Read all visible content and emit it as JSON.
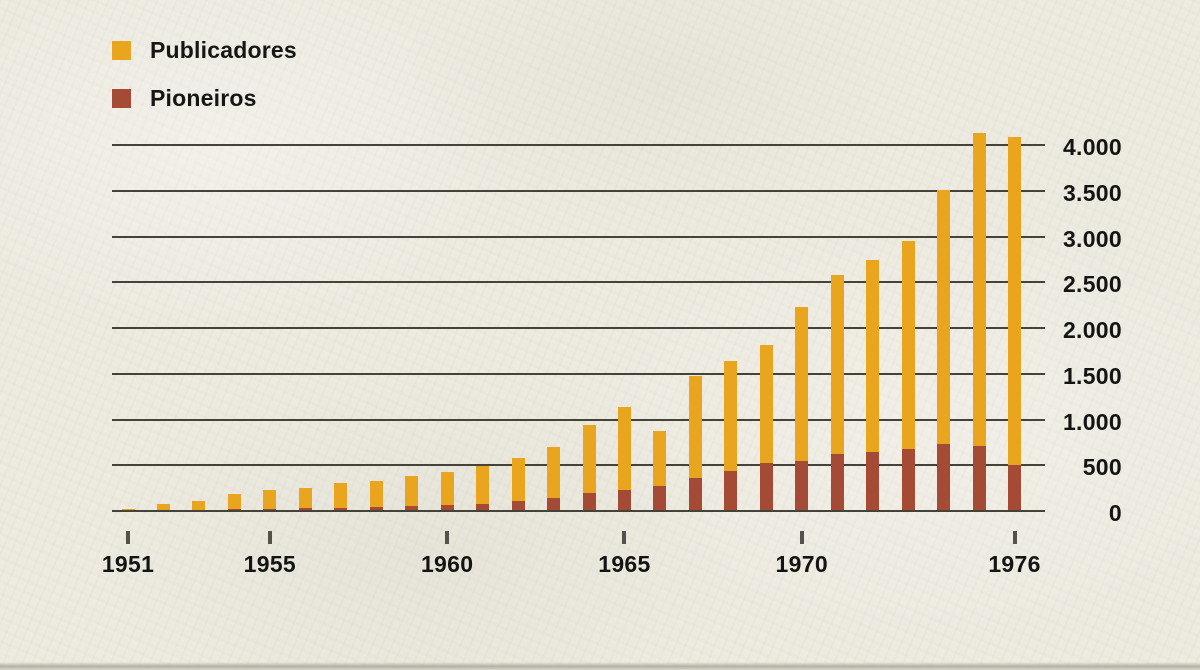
{
  "page": {
    "background_color": "#edeae0",
    "text_color": "#141412",
    "gridline_color": "#45423a"
  },
  "legend": {
    "position": "top-left",
    "items": [
      {
        "label": "Publicadores",
        "color": "#e8a51d"
      },
      {
        "label": "Pioneiros",
        "color": "#a54b35"
      }
    ]
  },
  "chart_data": {
    "type": "bar",
    "bar_mode": "overlay-stacked",
    "note": "Pioneiros segment is drawn at the base of each bar; the yellow Publicadores bar reaches the total value shown.",
    "title": "",
    "xlabel": "",
    "ylabel": "",
    "categories": [
      1951,
      1952,
      1953,
      1954,
      1955,
      1956,
      1957,
      1958,
      1959,
      1960,
      1961,
      1962,
      1963,
      1964,
      1965,
      1966,
      1967,
      1968,
      1969,
      1970,
      1971,
      1972,
      1973,
      1974,
      1975,
      1976
    ],
    "series": [
      {
        "name": "Publicadores",
        "color": "#e8a51d",
        "values": [
          25,
          80,
          110,
          190,
          230,
          250,
          310,
          325,
          385,
          430,
          490,
          580,
          700,
          940,
          1140,
          870,
          1470,
          1640,
          1810,
          2230,
          2580,
          2740,
          2950,
          3510,
          4130,
          4090
        ]
      },
      {
        "name": "Pioneiros",
        "color": "#a54b35",
        "values": [
          5,
          10,
          15,
          20,
          25,
          30,
          35,
          45,
          60,
          70,
          80,
          105,
          145,
          200,
          230,
          270,
          360,
          440,
          520,
          545,
          625,
          645,
          675,
          730,
          710,
          500
        ]
      }
    ],
    "ylim": [
      0,
      4000
    ],
    "y_ticks": [
      0,
      500,
      1000,
      1500,
      2000,
      2500,
      3000,
      3500,
      4000
    ],
    "y_tick_labels": [
      "0",
      "500",
      "1.000",
      "1.500",
      "2.000",
      "2.500",
      "3.000",
      "3.500",
      "4.000"
    ],
    "x_tick_years": [
      1951,
      1955,
      1960,
      1965,
      1970,
      1976
    ],
    "x_tick_labels": [
      "1951",
      "1955",
      "1960",
      "1965",
      "1970",
      "1976"
    ],
    "grid": "horizontal",
    "legend_position": "top-left",
    "y_axis_side": "right"
  }
}
